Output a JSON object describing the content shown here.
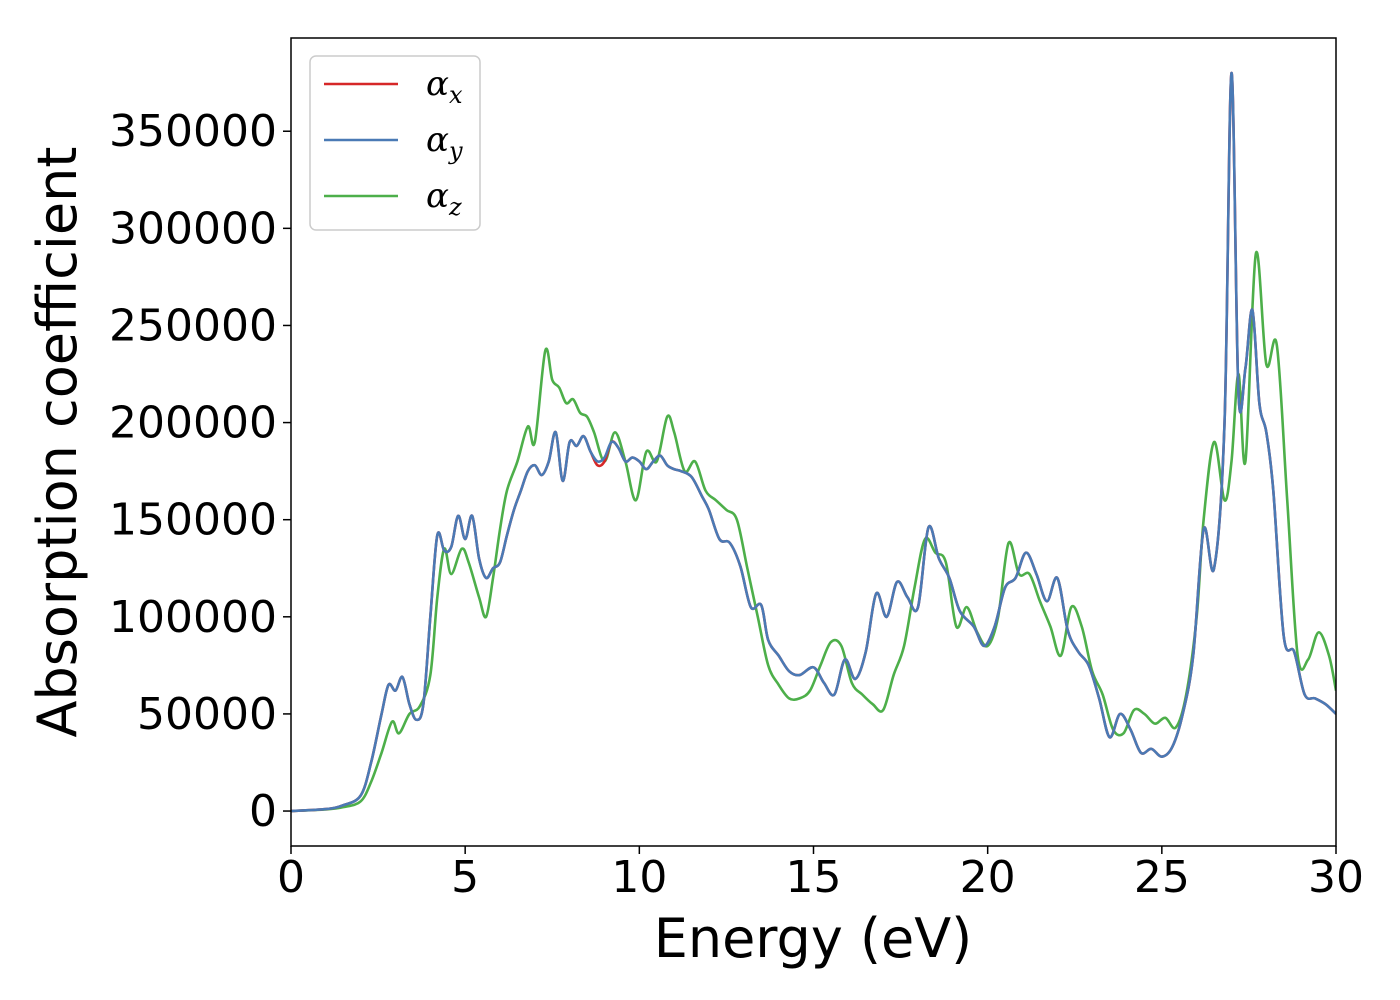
{
  "chart_data": {
    "type": "line",
    "title": "",
    "xlabel": "Energy (eV)",
    "ylabel": "Absorption coefficient",
    "xlim": [
      0,
      30
    ],
    "ylim": [
      -18000,
      398000
    ],
    "x_ticks": [
      0,
      5,
      10,
      15,
      20,
      25,
      30
    ],
    "y_ticks": [
      0,
      50000,
      100000,
      150000,
      200000,
      250000,
      300000,
      350000
    ],
    "grid": false,
    "legend_position": "top-left",
    "series": [
      {
        "name": "α_x",
        "legend_main": "α",
        "legend_sub": "x",
        "color": "#d62728",
        "x": [
          0,
          1,
          1.5,
          2,
          2.3,
          2.6,
          2.8,
          3.0,
          3.2,
          3.4,
          3.6,
          3.8,
          4.0,
          4.2,
          4.4,
          4.6,
          4.8,
          5.0,
          5.2,
          5.4,
          5.6,
          5.8,
          6.0,
          6.2,
          6.4,
          6.6,
          6.8,
          7.0,
          7.2,
          7.4,
          7.6,
          7.8,
          8.0,
          8.2,
          8.4,
          8.6,
          8.8,
          9.0,
          9.2,
          9.4,
          9.6,
          9.8,
          10.0,
          10.2,
          10.4,
          10.6,
          10.8,
          11.0,
          11.2,
          11.5,
          11.8,
          12.0,
          12.3,
          12.6,
          12.9,
          13.2,
          13.5,
          13.7,
          14.0,
          14.3,
          14.6,
          15.0,
          15.3,
          15.6,
          15.9,
          16.2,
          16.5,
          16.8,
          17.1,
          17.4,
          17.7,
          18.0,
          18.3,
          18.6,
          18.9,
          19.2,
          19.6,
          19.9,
          20.2,
          20.5,
          20.8,
          21.1,
          21.4,
          21.7,
          22.0,
          22.3,
          22.6,
          22.9,
          23.2,
          23.5,
          23.8,
          24.1,
          24.4,
          24.7,
          25.0,
          25.3,
          25.6,
          25.9,
          26.2,
          26.5,
          26.8,
          27.0,
          27.2,
          27.4,
          27.6,
          27.8,
          28.0,
          28.2,
          28.5,
          28.8,
          29.1,
          29.4,
          29.7,
          30.0
        ],
        "y": [
          0,
          1000,
          3000,
          8000,
          25000,
          50000,
          65000,
          62000,
          69000,
          55000,
          47000,
          55000,
          100000,
          142000,
          134000,
          136000,
          152000,
          140000,
          152000,
          130000,
          120000,
          125000,
          128000,
          142000,
          155000,
          165000,
          175000,
          178000,
          173000,
          180000,
          195000,
          170000,
          190000,
          188000,
          193000,
          185000,
          178000,
          180000,
          190000,
          187000,
          180000,
          182000,
          180000,
          176000,
          180000,
          183000,
          178000,
          176000,
          175000,
          172000,
          162000,
          155000,
          140000,
          138000,
          126000,
          105000,
          106000,
          88000,
          80000,
          72000,
          70000,
          74000,
          66000,
          60000,
          78000,
          68000,
          82000,
          112000,
          100000,
          118000,
          110000,
          105000,
          146000,
          130000,
          120000,
          103000,
          95000,
          85000,
          95000,
          115000,
          120000,
          133000,
          122000,
          108000,
          120000,
          93000,
          82000,
          75000,
          58000,
          38000,
          50000,
          42000,
          30000,
          32000,
          28000,
          33000,
          50000,
          80000,
          145000,
          125000,
          200000,
          380000,
          215000,
          228000,
          258000,
          210000,
          195000,
          165000,
          90000,
          82000,
          60000,
          58000,
          55000,
          50000
        ]
      },
      {
        "name": "α_y",
        "legend_main": "α",
        "legend_sub": "y",
        "color": "#4a7ab5",
        "x": [
          0,
          1,
          1.5,
          2,
          2.3,
          2.6,
          2.8,
          3.0,
          3.2,
          3.4,
          3.6,
          3.8,
          4.0,
          4.2,
          4.4,
          4.6,
          4.8,
          5.0,
          5.2,
          5.4,
          5.6,
          5.8,
          6.0,
          6.2,
          6.4,
          6.6,
          6.8,
          7.0,
          7.2,
          7.4,
          7.6,
          7.8,
          8.0,
          8.2,
          8.4,
          8.6,
          8.8,
          9.0,
          9.2,
          9.4,
          9.6,
          9.8,
          10.0,
          10.2,
          10.4,
          10.6,
          10.8,
          11.0,
          11.2,
          11.5,
          11.8,
          12.0,
          12.3,
          12.6,
          12.9,
          13.2,
          13.5,
          13.7,
          14.0,
          14.3,
          14.6,
          15.0,
          15.3,
          15.6,
          15.9,
          16.2,
          16.5,
          16.8,
          17.1,
          17.4,
          17.7,
          18.0,
          18.3,
          18.6,
          18.9,
          19.2,
          19.6,
          19.9,
          20.2,
          20.5,
          20.8,
          21.1,
          21.4,
          21.7,
          22.0,
          22.3,
          22.6,
          22.9,
          23.2,
          23.5,
          23.8,
          24.1,
          24.4,
          24.7,
          25.0,
          25.3,
          25.6,
          25.9,
          26.2,
          26.5,
          26.8,
          27.0,
          27.2,
          27.4,
          27.6,
          27.8,
          28.0,
          28.2,
          28.5,
          28.8,
          29.1,
          29.4,
          29.7,
          30.0
        ],
        "y": [
          0,
          1000,
          3000,
          8000,
          25000,
          50000,
          65000,
          62000,
          69000,
          55000,
          47000,
          55000,
          100000,
          142000,
          134000,
          136000,
          152000,
          140000,
          152000,
          130000,
          120000,
          125000,
          128000,
          142000,
          155000,
          165000,
          175000,
          178000,
          173000,
          180000,
          195000,
          170000,
          190000,
          188000,
          193000,
          185000,
          180000,
          182000,
          190000,
          187000,
          180000,
          182000,
          180000,
          176000,
          180000,
          183000,
          178000,
          176000,
          175000,
          172000,
          162000,
          155000,
          140000,
          138000,
          126000,
          105000,
          106000,
          88000,
          80000,
          72000,
          70000,
          74000,
          66000,
          60000,
          78000,
          68000,
          82000,
          112000,
          100000,
          118000,
          110000,
          105000,
          146000,
          130000,
          120000,
          103000,
          95000,
          85000,
          95000,
          115000,
          120000,
          133000,
          122000,
          108000,
          120000,
          93000,
          82000,
          75000,
          58000,
          38000,
          50000,
          42000,
          30000,
          32000,
          28000,
          33000,
          50000,
          80000,
          145000,
          125000,
          200000,
          380000,
          215000,
          228000,
          258000,
          210000,
          195000,
          165000,
          90000,
          82000,
          60000,
          58000,
          55000,
          50000
        ]
      },
      {
        "name": "α_z",
        "legend_main": "α",
        "legend_sub": "z",
        "color": "#4daf4a",
        "x": [
          0,
          1,
          1.5,
          2,
          2.3,
          2.6,
          2.9,
          3.1,
          3.4,
          3.7,
          4.0,
          4.2,
          4.4,
          4.6,
          4.9,
          5.1,
          5.4,
          5.6,
          5.8,
          6.0,
          6.2,
          6.5,
          6.8,
          7.0,
          7.3,
          7.5,
          7.7,
          7.9,
          8.1,
          8.3,
          8.5,
          8.7,
          9.0,
          9.3,
          9.6,
          9.9,
          10.2,
          10.5,
          10.8,
          11.0,
          11.3,
          11.6,
          11.9,
          12.2,
          12.5,
          12.8,
          13.1,
          13.4,
          13.7,
          14.0,
          14.3,
          14.6,
          14.9,
          15.2,
          15.5,
          15.8,
          16.1,
          16.4,
          16.7,
          17.0,
          17.3,
          17.6,
          17.9,
          18.2,
          18.5,
          18.8,
          19.1,
          19.4,
          19.7,
          20.0,
          20.3,
          20.6,
          20.9,
          21.2,
          21.5,
          21.8,
          22.1,
          22.4,
          22.7,
          23.0,
          23.3,
          23.6,
          23.9,
          24.2,
          24.5,
          24.8,
          25.1,
          25.4,
          25.7,
          26.0,
          26.2,
          26.5,
          26.8,
          27.0,
          27.2,
          27.4,
          27.7,
          28.0,
          28.3,
          28.6,
          28.9,
          29.2,
          29.5,
          29.8,
          30.0
        ],
        "y": [
          0,
          800,
          2000,
          5000,
          15000,
          30000,
          46000,
          40000,
          50000,
          54000,
          70000,
          110000,
          135000,
          122000,
          135000,
          128000,
          110000,
          100000,
          120000,
          145000,
          165000,
          180000,
          198000,
          190000,
          237000,
          222000,
          218000,
          210000,
          212000,
          205000,
          203000,
          195000,
          180000,
          195000,
          180000,
          160000,
          185000,
          180000,
          203000,
          195000,
          175000,
          180000,
          165000,
          160000,
          155000,
          150000,
          125000,
          100000,
          75000,
          65000,
          58000,
          58000,
          62000,
          75000,
          87000,
          85000,
          66000,
          60000,
          55000,
          52000,
          70000,
          85000,
          115000,
          140000,
          133000,
          128000,
          95000,
          105000,
          92000,
          85000,
          100000,
          138000,
          122000,
          122000,
          108000,
          95000,
          80000,
          105000,
          95000,
          72000,
          60000,
          42000,
          40000,
          52000,
          50000,
          45000,
          48000,
          43000,
          60000,
          100000,
          150000,
          190000,
          160000,
          180000,
          225000,
          180000,
          287000,
          230000,
          240000,
          160000,
          80000,
          78000,
          92000,
          80000,
          62000
        ]
      }
    ]
  }
}
